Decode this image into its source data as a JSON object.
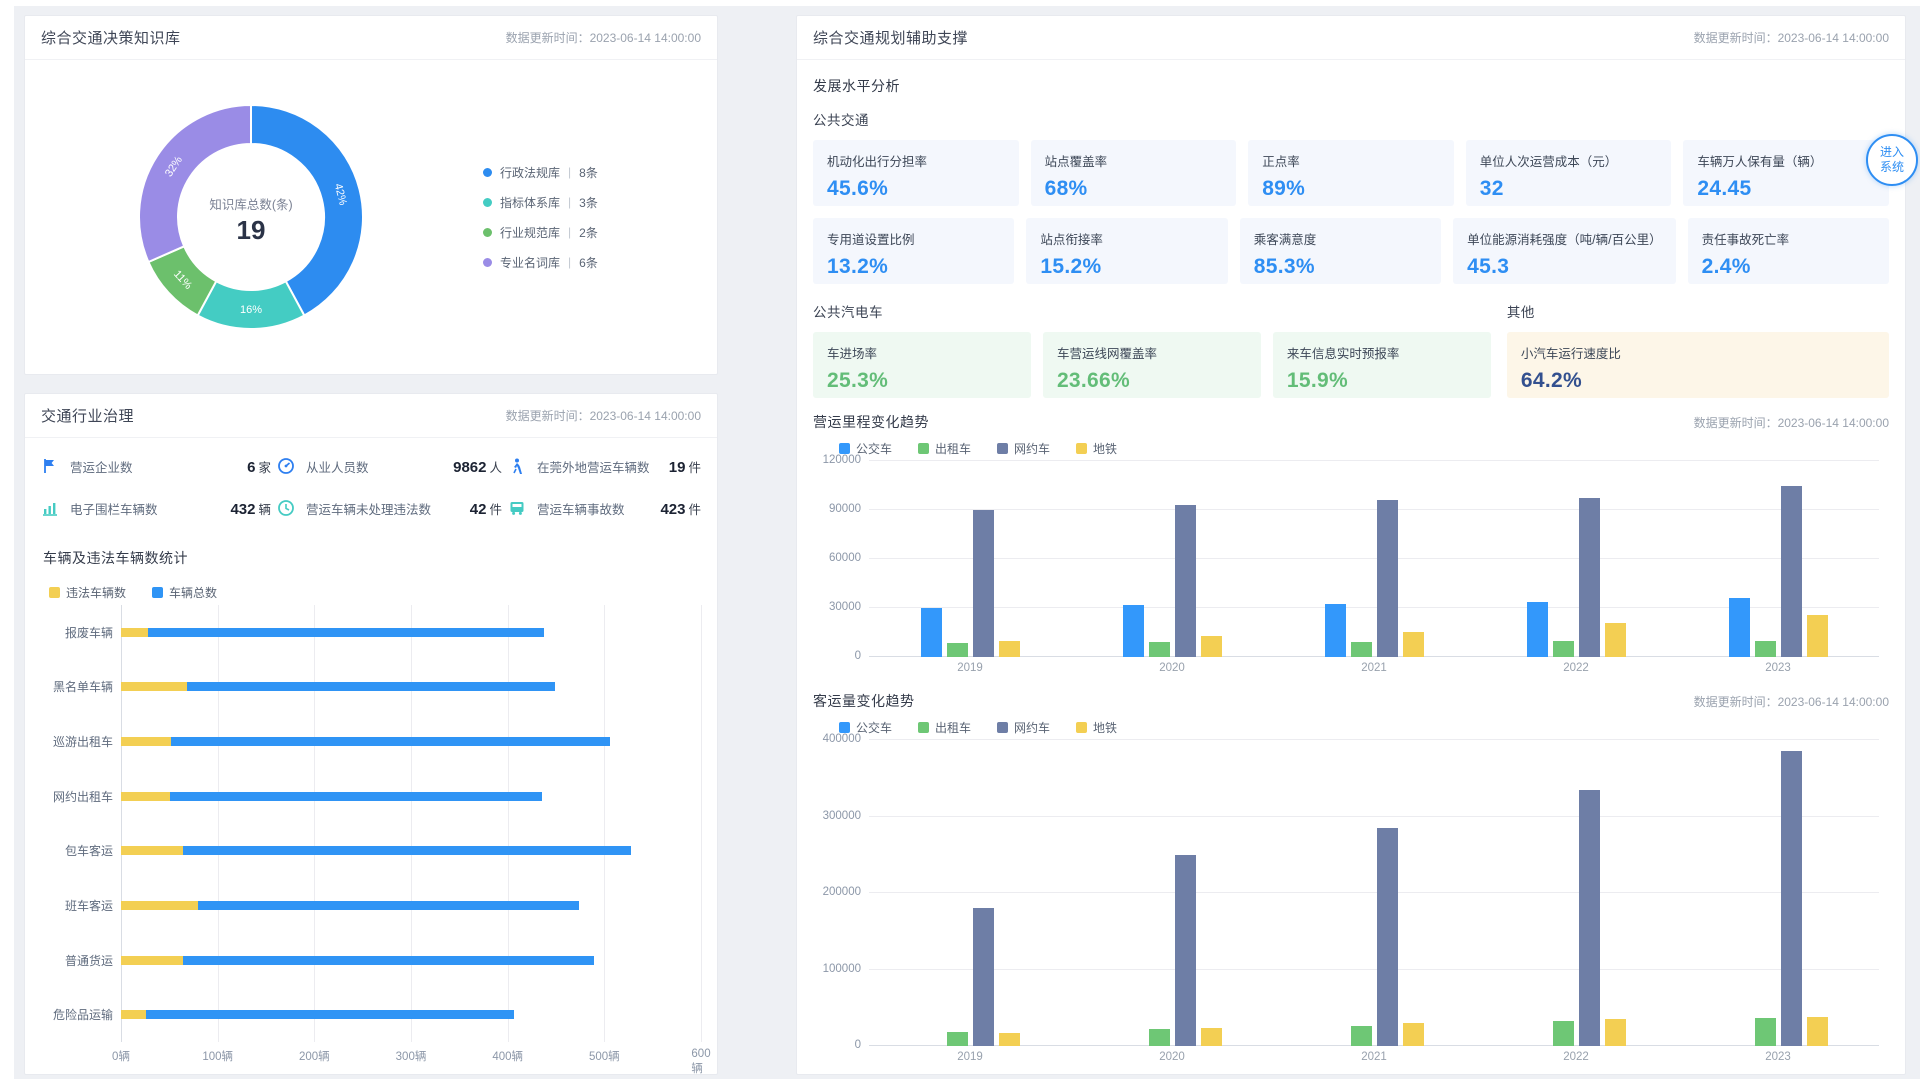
{
  "left_top_panel": {
    "title": "综合交通决策知识库",
    "update_time": "数据更新时间：2023-06-14 14:00:00"
  },
  "left_bottom_panel": {
    "title": "交通行业治理",
    "update_time": "数据更新时间：2023-06-14 14:00:00",
    "stats": [
      {
        "icon": "flag-icon",
        "label": "营运企业数",
        "value": "6",
        "unit": "家",
        "color": "#2e7ff0"
      },
      {
        "icon": "gauge-icon",
        "label": "从业人员数",
        "value": "9862",
        "unit": "人",
        "color": "#2e7ff0"
      },
      {
        "icon": "pedestrian-icon",
        "label": "在莞外地营运车辆数",
        "value": "19",
        "unit": "件",
        "color": "#2e7ff0"
      },
      {
        "icon": "chart-icon",
        "label": "电子围栏车辆数",
        "value": "432",
        "unit": "辆",
        "color": "#45cbc3"
      },
      {
        "icon": "clock-icon",
        "label": "营运车辆未处理违法数",
        "value": "42",
        "unit": "件",
        "color": "#45cbc3"
      },
      {
        "icon": "bus-icon",
        "label": "营运车辆事故数",
        "value": "423",
        "unit": "件",
        "color": "#45cbc3"
      }
    ]
  },
  "right_panel": {
    "title": "综合交通规划辅助支撑",
    "update_time": "数据更新时间：2023-06-14 14:00:00",
    "section_title": "发展水平分析",
    "groups": [
      {
        "title": "公共交通",
        "theme": "theme-blue",
        "cards": [
          {
            "label": "机动化出行分担率",
            "value": "45.6%"
          },
          {
            "label": "站点覆盖率",
            "value": "68%"
          },
          {
            "label": "正点率",
            "value": "89%"
          },
          {
            "label": "单位人次运营成本（元）",
            "value": "32"
          },
          {
            "label": "车辆万人保有量（辆）",
            "value": "24.45"
          },
          {
            "label": "专用道设置比例",
            "value": "13.2%"
          },
          {
            "label": "站点衔接率",
            "value": "15.2%"
          },
          {
            "label": "乘客满意度",
            "value": "85.3%"
          },
          {
            "label": "单位能源消耗强度（吨/辆/百公里）",
            "value": "45.3"
          },
          {
            "label": "责任事故死亡率",
            "value": "2.4%"
          }
        ]
      },
      {
        "title": "公共汽电车",
        "theme": "theme-green",
        "cards": [
          {
            "label": "车进场率",
            "value": "25.3%"
          },
          {
            "label": "车营运线网覆盖率",
            "value": "23.66%"
          },
          {
            "label": "来车信息实时预报率",
            "value": "15.9%"
          }
        ]
      },
      {
        "title": "其他",
        "theme": "theme-cream",
        "cards": [
          {
            "label": "小汽车运行速度比",
            "value": "64.2%"
          }
        ]
      }
    ]
  },
  "enter_button": {
    "line1": "进入",
    "line2": "系统"
  },
  "chart_data": [
    {
      "type": "pie",
      "center_label": "知识库总数(条)",
      "center_total": "19",
      "legend_divider": "|",
      "slices": [
        {
          "name": "行政法规库",
          "count_label": "8条",
          "value": 8,
          "pct_label": "42%",
          "color": "#2d8cf0"
        },
        {
          "name": "指标体系库",
          "count_label": "3条",
          "value": 3,
          "pct_label": "16%",
          "color": "#44ccc3"
        },
        {
          "name": "行业规范库",
          "count_label": "2条",
          "value": 2,
          "pct_label": "11%",
          "color": "#6cc06c"
        },
        {
          "name": "专业名词库",
          "count_label": "6条",
          "value": 6,
          "pct_label": "32%",
          "color": "#9a8ce6"
        }
      ]
    },
    {
      "type": "bar",
      "orientation": "horizontal",
      "stacked": true,
      "title": "车辆及违法车辆数统计",
      "categories": [
        "报废车辆",
        "黑名单车辆",
        "巡游出租车",
        "网约出租车",
        "包车客运",
        "班车客运",
        "普通货运",
        "危险品运输"
      ],
      "series": [
        {
          "name": "违法车辆数",
          "color": "#f3cf53",
          "values": [
            30,
            72,
            55,
            54,
            68,
            84,
            68,
            27
          ]
        },
        {
          "name": "车辆总数",
          "color": "#2f94f5",
          "values": [
            433,
            403,
            480,
            407,
            490,
            418,
            450,
            403
          ]
        }
      ],
      "xmax": 600,
      "xtick_labels": [
        "0辆",
        "100辆",
        "200辆",
        "300辆",
        "400辆",
        "500辆",
        "600辆"
      ],
      "grid": true,
      "legend_position": "top-left"
    },
    {
      "type": "bar",
      "title": "营运里程变化趋势",
      "update_time": "数据更新时间：2023-06-14 14:00:00",
      "categories": [
        "2019",
        "2020",
        "2021",
        "2022",
        "2023"
      ],
      "series": [
        {
          "name": "公交车",
          "color": "#3398fb",
          "values": [
            30000,
            32000,
            32500,
            33500,
            36000
          ]
        },
        {
          "name": "出租车",
          "color": "#6ec775",
          "values": [
            8500,
            9000,
            9100,
            9500,
            9600
          ]
        },
        {
          "name": "网约车",
          "color": "#6e7ea6",
          "values": [
            90000,
            93000,
            96000,
            97500,
            105000
          ]
        },
        {
          "name": "地铁",
          "color": "#f3cf53",
          "values": [
            10000,
            13000,
            15500,
            21000,
            26000
          ]
        }
      ],
      "ylim": [
        0,
        120000
      ],
      "yticks": [
        0,
        30000,
        60000,
        90000,
        120000
      ],
      "grid": true,
      "legend_position": "top-left"
    },
    {
      "type": "bar",
      "title": "客运量变化趋势",
      "update_time": "数据更新时间：2023-06-14 14:00:00",
      "categories": [
        "2019",
        "2020",
        "2021",
        "2022",
        "2023"
      ],
      "series": [
        {
          "name": "公交车",
          "color": "#3398fb",
          "values": [
            0,
            0,
            0,
            0,
            0
          ]
        },
        {
          "name": "出租车",
          "color": "#6ec775",
          "values": [
            18000,
            22000,
            26000,
            33000,
            37000
          ]
        },
        {
          "name": "网约车",
          "color": "#6e7ea6",
          "values": [
            180000,
            250000,
            285000,
            335000,
            385000
          ]
        },
        {
          "name": "地铁",
          "color": "#f3cf53",
          "values": [
            17000,
            24000,
            30000,
            35000,
            38000
          ]
        }
      ],
      "ylim": [
        0,
        400000
      ],
      "yticks": [
        0,
        100000,
        200000,
        300000,
        400000
      ],
      "grid": true,
      "legend_position": "top-left"
    }
  ]
}
